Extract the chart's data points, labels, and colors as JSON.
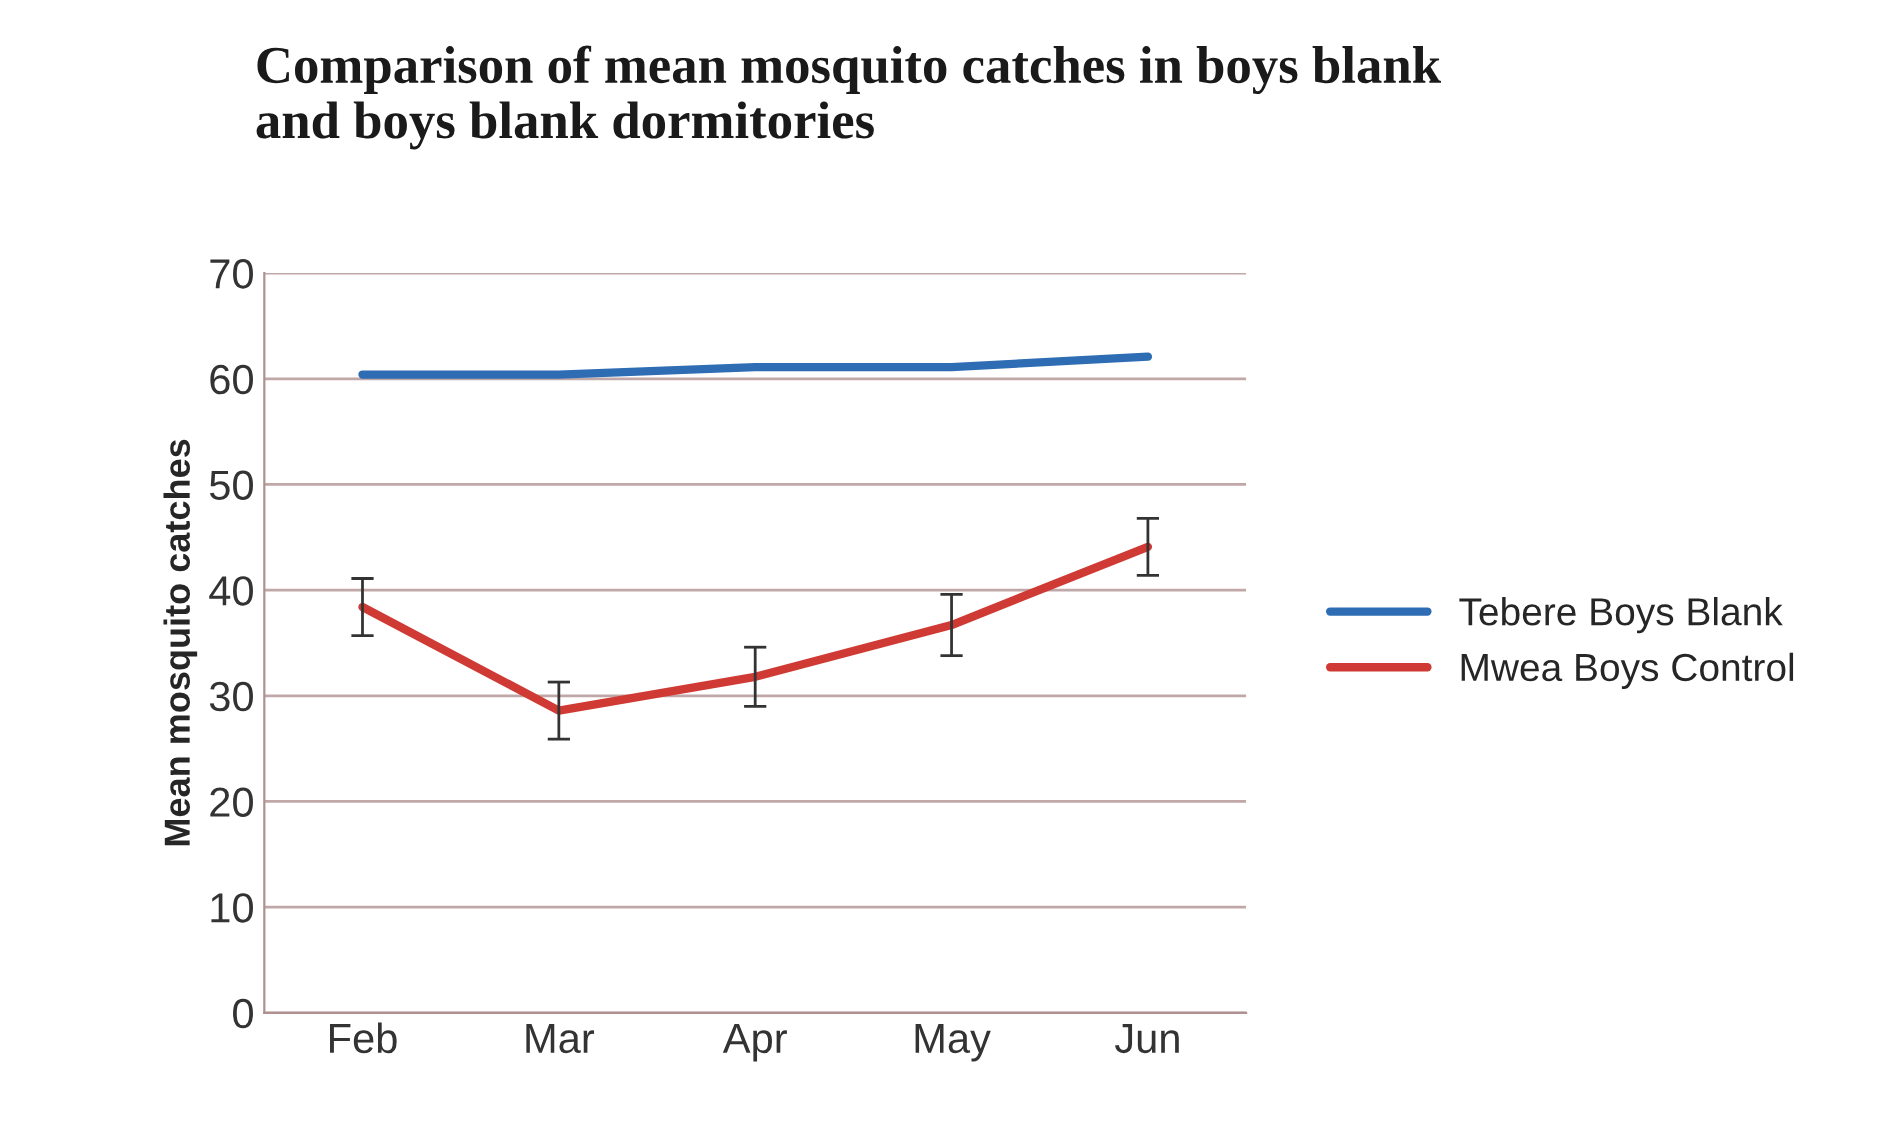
{
  "chart_data": {
    "type": "line",
    "title": "Comparison of mean mosquito catches in boys blank\nand boys blank dormitories",
    "ylabel": "Mean mosquito catches",
    "categories": [
      "Feb",
      "Mar",
      "Apr",
      "May",
      "Jun"
    ],
    "series": [
      {
        "name": "Tebere Boys Blank",
        "color": "#2e6db4",
        "values": [
          60.4,
          60.4,
          61.1,
          61.1,
          62.1
        ]
      },
      {
        "name": "Mwea Boys Control",
        "color": "#d03a34",
        "values": [
          38.4,
          28.6,
          31.8,
          36.7,
          44.1
        ],
        "errors": [
          2.7,
          2.7,
          2.8,
          2.9,
          2.7
        ]
      }
    ],
    "ylim": [
      0,
      70
    ],
    "yticks": [
      0,
      10,
      20,
      30,
      40,
      50,
      60,
      70
    ],
    "grid": "y",
    "legend": "right",
    "marker": "none",
    "line_style": "solid"
  }
}
